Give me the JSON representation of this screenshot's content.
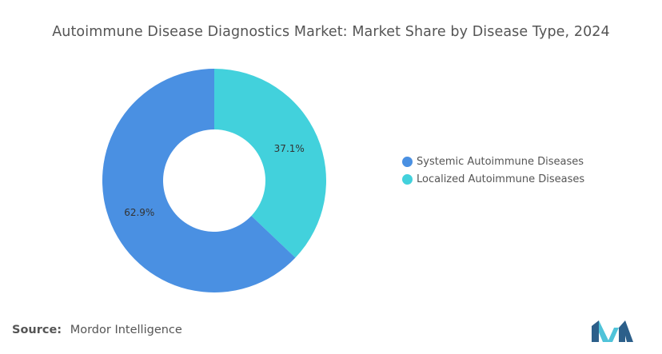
{
  "colors": {
    "systemic": "#4a90e2",
    "localized": "#42d1dc",
    "logo_dark": "#2c5f8a",
    "logo_light": "#4fc3d9"
  },
  "header": {
    "title": "Autoimmune Disease Diagnostics Market: Market Share by Disease Type, 2024"
  },
  "footer": {
    "source_label": "Source:",
    "source_value": "Mordor Intelligence",
    "logo_icon": "mordor-intelligence-logo-icon"
  },
  "chart_data": {
    "type": "pie",
    "style": "donut",
    "title": "Autoimmune Disease Diagnostics Market: Market Share by Disease Type, 2024",
    "legend_position": "right",
    "slices": [
      {
        "label": "Systemic Autoimmune Diseases",
        "value": 62.9,
        "display": "62.9%",
        "color": "#4a90e2"
      },
      {
        "label": "Localized Autoimmune Diseases",
        "value": 37.1,
        "display": "37.1%",
        "color": "#42d1dc"
      }
    ]
  }
}
